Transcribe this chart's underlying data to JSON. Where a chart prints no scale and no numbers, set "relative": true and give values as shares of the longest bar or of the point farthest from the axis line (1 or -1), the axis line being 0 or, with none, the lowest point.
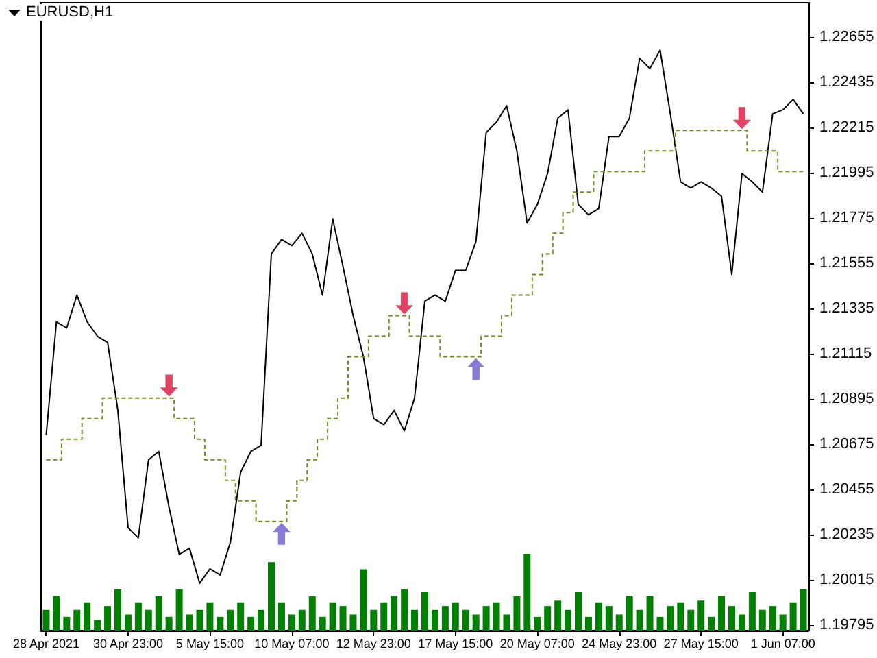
{
  "chart_data": [
    {
      "type": "line",
      "title": "EURUSD,H1",
      "categories": [
        "28 Apr 2021",
        null,
        null,
        null,
        null,
        null,
        null,
        null,
        "30 Apr 23:00",
        null,
        null,
        null,
        null,
        null,
        null,
        null,
        "5 May 15:00",
        null,
        null,
        null,
        null,
        null,
        null,
        null,
        "10 May 07:00",
        null,
        null,
        null,
        null,
        null,
        null,
        null,
        "12 May 23:00",
        null,
        null,
        null,
        null,
        null,
        null,
        null,
        "17 May 15:00",
        null,
        null,
        null,
        null,
        null,
        null,
        null,
        "20 May 07:00",
        null,
        null,
        null,
        null,
        null,
        null,
        null,
        "24 May 23:00",
        null,
        null,
        null,
        null,
        null,
        null,
        null,
        "27 May 15:00",
        null,
        null,
        null,
        null,
        null,
        null,
        null,
        "1 Jun 07:00",
        null,
        null
      ],
      "ylim": [
        1.1977,
        1.2282
      ],
      "yticks": [
        1.19795,
        1.20015,
        1.20235,
        1.20455,
        1.20675,
        1.20895,
        1.21115,
        1.21335,
        1.21555,
        1.21775,
        1.21995,
        1.22215,
        1.22435,
        1.22655
      ],
      "series": [
        {
          "type": "line",
          "color": "#000000",
          "values": [
            1.2072,
            1.2127,
            1.2124,
            1.214,
            1.2127,
            1.212,
            1.2117,
            1.2084,
            1.2027,
            1.2022,
            1.206,
            1.2064,
            1.2037,
            1.2014,
            1.2017,
            1.2,
            1.2007,
            1.2004,
            1.202,
            1.2054,
            1.2064,
            1.2067,
            1.216,
            1.2167,
            1.2164,
            1.217,
            1.216,
            1.214,
            1.2177,
            1.2154,
            1.213,
            1.211,
            1.208,
            1.2077,
            1.2084,
            1.2074,
            1.209,
            1.2137,
            1.214,
            1.2137,
            1.2152,
            1.2152,
            1.2166,
            1.2219,
            1.2224,
            1.2232,
            1.221,
            1.2175,
            1.2184,
            1.2199,
            1.2226,
            1.223,
            1.2184,
            1.2179,
            1.2182,
            1.2217,
            1.2217,
            1.2226,
            1.2255,
            1.225,
            1.2259,
            1.2228,
            1.2195,
            1.2192,
            1.2195,
            1.2192,
            1.2188,
            1.215,
            1.2199,
            1.2195,
            1.219,
            1.2228,
            1.223,
            1.2235,
            1.2228
          ]
        },
        {
          "type": "step",
          "color": "#6b8e23",
          "line_style": "dashed",
          "values": [
            1.206,
            1.206,
            1.207,
            1.207,
            1.208,
            1.208,
            1.209,
            1.209,
            1.209,
            1.209,
            1.209,
            1.209,
            1.209,
            1.208,
            1.208,
            1.207,
            1.206,
            1.206,
            1.205,
            1.204,
            1.204,
            1.203,
            1.203,
            1.203,
            1.204,
            1.205,
            1.206,
            1.207,
            1.208,
            1.209,
            1.211,
            1.211,
            1.212,
            1.212,
            1.213,
            1.213,
            1.212,
            1.212,
            1.212,
            1.211,
            1.211,
            1.211,
            1.211,
            1.212,
            1.212,
            1.213,
            1.214,
            1.214,
            1.215,
            1.216,
            1.217,
            1.218,
            1.219,
            1.219,
            1.22,
            1.22,
            1.22,
            1.22,
            1.22,
            1.221,
            1.221,
            1.221,
            1.222,
            1.222,
            1.222,
            1.222,
            1.222,
            1.222,
            1.222,
            1.221,
            1.221,
            1.221,
            1.22,
            1.22,
            1.22
          ]
        },
        {
          "type": "scatter",
          "color": "#dc143c",
          "values": [
            null,
            null,
            null,
            null,
            null,
            null,
            null,
            null,
            null,
            null,
            null,
            null,
            1.2096,
            null,
            null,
            null,
            null,
            null,
            null,
            null,
            null,
            null,
            null,
            null,
            null,
            null,
            null,
            null,
            null,
            null,
            null,
            null,
            null,
            null,
            null,
            1.2136,
            null,
            null,
            null,
            null,
            null,
            null,
            null,
            null,
            null,
            null,
            null,
            null,
            null,
            null,
            null,
            null,
            null,
            null,
            null,
            null,
            null,
            null,
            null,
            null,
            null,
            null,
            null,
            null,
            null,
            null,
            null,
            null,
            1.2226,
            null,
            null,
            null,
            null,
            null,
            null
          ]
        },
        {
          "type": "scatter",
          "color": "#6a5acd",
          "values": [
            null,
            null,
            null,
            null,
            null,
            null,
            null,
            null,
            null,
            null,
            null,
            null,
            null,
            null,
            null,
            null,
            null,
            null,
            null,
            null,
            null,
            null,
            null,
            1.2024,
            null,
            null,
            null,
            null,
            null,
            null,
            null,
            null,
            null,
            null,
            null,
            null,
            null,
            null,
            null,
            null,
            null,
            null,
            1.2104,
            null,
            null,
            null,
            null,
            null,
            null,
            null,
            null,
            null,
            null,
            null,
            null,
            null,
            null,
            null,
            null,
            null,
            null,
            null,
            null,
            null,
            null,
            null,
            null,
            null,
            null,
            null,
            null,
            null,
            null,
            null,
            null
          ]
        }
      ]
    },
    {
      "type": "bar",
      "relative": true,
      "tick_labels": false,
      "color": "#008000",
      "values": [
        0.27,
        0.45,
        0.18,
        0.27,
        0.36,
        0.14,
        0.32,
        0.54,
        0.21,
        0.36,
        0.27,
        0.45,
        0.18,
        0.54,
        0.21,
        0.27,
        0.36,
        0.18,
        0.27,
        0.36,
        0.18,
        0.27,
        0.89,
        0.36,
        0.21,
        0.27,
        0.45,
        0.18,
        0.36,
        0.32,
        0.21,
        0.8,
        0.27,
        0.36,
        0.45,
        0.54,
        0.27,
        0.5,
        0.27,
        0.32,
        0.36,
        0.27,
        0.21,
        0.32,
        0.36,
        0.21,
        0.45,
        1,
        0.18,
        0.32,
        0.39,
        0.27,
        0.5,
        0.18,
        0.36,
        0.32,
        0.21,
        0.45,
        0.27,
        0.45,
        0.18,
        0.32,
        0.36,
        0.27,
        0.39,
        0.18,
        0.45,
        0.32,
        0.21,
        0.5,
        0.27,
        0.32,
        0.21,
        0.36,
        0.54
      ]
    }
  ]
}
